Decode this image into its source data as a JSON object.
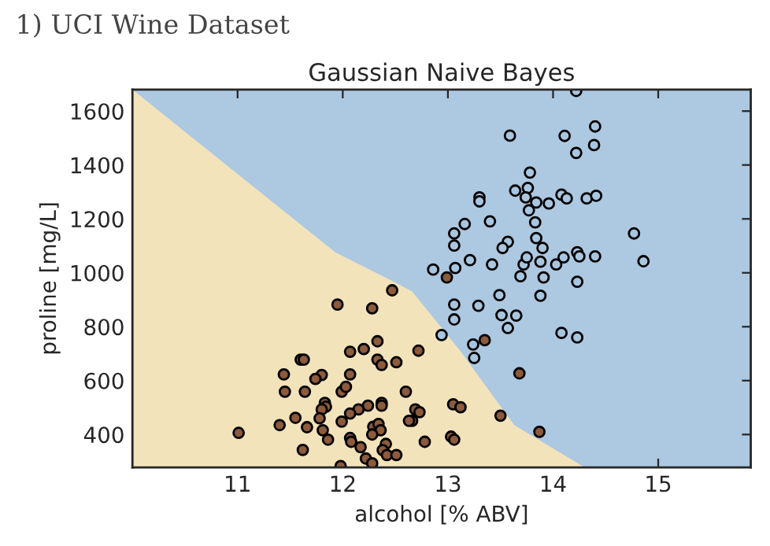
{
  "chart_data": {
    "type": "scatter",
    "title": "Gaussian Naive Bayes",
    "xlabel": "alcohol [% ABV]",
    "ylabel": "proline [mg/L]",
    "annotations": [
      "1) UCI Wine Dataset"
    ],
    "xlim": [
      10.0,
      15.88
    ],
    "ylim": [
      278,
      1680
    ],
    "xticks": [
      11,
      12,
      13,
      14,
      15
    ],
    "yticks": [
      400,
      600,
      800,
      1000,
      1200,
      1400,
      1600
    ],
    "grid": false,
    "legend": false,
    "bands": [
      {
        "axis": "y",
        "from": 278,
        "to": 1680,
        "color": "#adc8e1"
      }
    ],
    "series": [
      {
        "type": "area",
        "color": "#f3e3bb",
        "x": [
          10.0,
          10.94,
          11.93,
          12.52,
          12.66,
          13.12,
          13.63,
          14.3
        ],
        "values": [
          1680,
          1385,
          1076,
          960,
          931,
          709,
          435,
          278
        ]
      },
      {
        "marker": "circle",
        "color": "#a9c6e0",
        "x": [
          14.22,
          13.59,
          14.11,
          14.4,
          14.39,
          14.22,
          13.78,
          13.64,
          13.76,
          13.74,
          13.84,
          13.96,
          13.77,
          14.08,
          14.13,
          14.32,
          14.41,
          13.3,
          13.3,
          13.16,
          13.4,
          13.83,
          13.06,
          13.06,
          13.57,
          13.52,
          13.84,
          13.9,
          14.77,
          14.86,
          12.86,
          13.07,
          13.21,
          13.42,
          13.72,
          13.75,
          13.88,
          14.03,
          14.1,
          14.23,
          14.25,
          14.4,
          13.69,
          13.91,
          14.23,
          13.49,
          13.88,
          13.06,
          13.29,
          13.51,
          13.65,
          13.57,
          13.06,
          14.08,
          14.23,
          13.24,
          13.25,
          12.94
        ],
        "values": [
          1675,
          1509,
          1508,
          1543,
          1474,
          1445,
          1372,
          1305,
          1315,
          1280,
          1261,
          1257,
          1232,
          1290,
          1276,
          1276,
          1286,
          1280,
          1265,
          1181,
          1191,
          1187,
          1146,
          1101,
          1115,
          1092,
          1129,
          1092,
          1146,
          1043,
          1012,
          1018,
          1047,
          1031,
          1031,
          1057,
          1041,
          1031,
          1057,
          1076,
          1061,
          1061,
          987,
          983,
          967,
          917,
          915,
          882,
          878,
          843,
          841,
          795,
          827,
          777,
          760,
          734,
          684,
          769
        ]
      },
      {
        "marker": "circle",
        "color": "#8c5a3c",
        "x": [
          12.99,
          13.35,
          12.47,
          11.95,
          12.28,
          12.33,
          12.07,
          12.2,
          12.72,
          11.6,
          11.63,
          12.33,
          12.37,
          12.51,
          11.44,
          12.07,
          11.8,
          11.74,
          11.45,
          11.64,
          11.99,
          12.03,
          12.6,
          11.83,
          11.84,
          12.37,
          12.37,
          12.24,
          12.15,
          12.07,
          11.8,
          12.69,
          12.73,
          13.05,
          13.12,
          11.55,
          11.78,
          11.4,
          11.66,
          11.99,
          12.66,
          12.63,
          12.29,
          12.34,
          12.36,
          11.81,
          11.01,
          11.86,
          12.07,
          12.08,
          12.17,
          12.28,
          12.41,
          12.38,
          12.42,
          12.51,
          11.62,
          12.22,
          11.98,
          12.28,
          12.78,
          13.03,
          13.06,
          13.68,
          13.5,
          13.87
        ],
        "values": [
          983,
          750,
          935,
          882,
          868,
          746,
          707,
          717,
          711,
          678,
          678,
          678,
          658,
          668,
          623,
          623,
          621,
          606,
          559,
          559,
          559,
          577,
          559,
          517,
          503,
          517,
          507,
          507,
          493,
          478,
          493,
          493,
          483,
          512,
          501,
          462,
          460,
          435,
          427,
          448,
          451,
          451,
          429,
          439,
          416,
          416,
          406,
          381,
          387,
          373,
          353,
          400,
          365,
          342,
          324,
          324,
          343,
          311,
          283,
          293,
          373,
          392,
          381,
          627,
          470,
          410
        ]
      }
    ]
  }
}
